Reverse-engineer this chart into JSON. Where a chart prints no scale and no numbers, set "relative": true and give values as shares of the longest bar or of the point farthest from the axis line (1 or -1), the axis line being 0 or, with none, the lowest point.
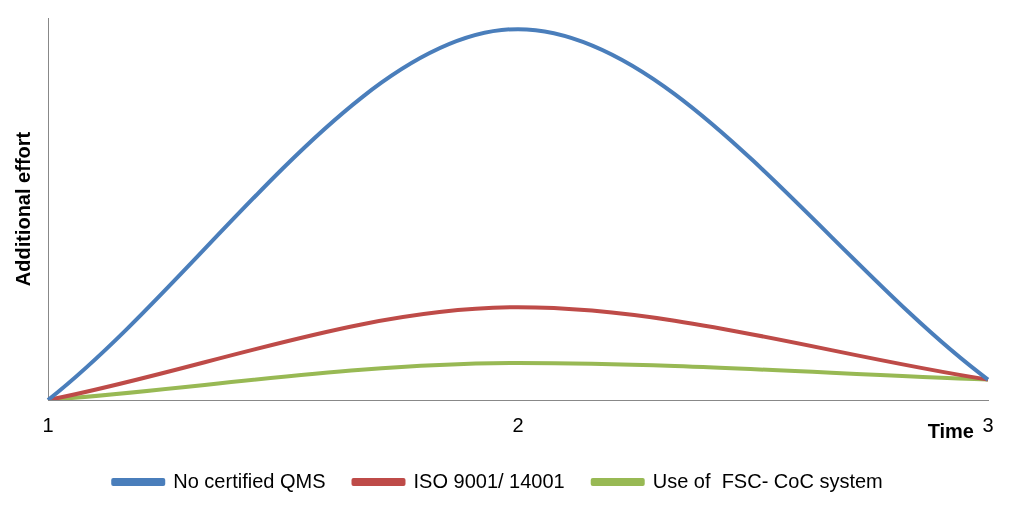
{
  "chart_data": {
    "type": "line",
    "relative": true,
    "ylabel": "Additional effort",
    "xlabel": "Time",
    "categories": [
      "1",
      "2",
      "3"
    ],
    "series": [
      {
        "name": "No certified QMS",
        "color": "#4a7ebb",
        "values": [
          0,
          1,
          0.055
        ]
      },
      {
        "name": "ISO 9001/ 14001",
        "color": "#be4b48",
        "values": [
          0,
          0.25,
          0.055
        ]
      },
      {
        "name": "Use of  FSC- CoC system",
        "color": "#98b954",
        "values": [
          0,
          0.1,
          0.055
        ]
      }
    ],
    "grid": false,
    "legend": "bottom",
    "marker": "none",
    "line_style": "solid"
  }
}
